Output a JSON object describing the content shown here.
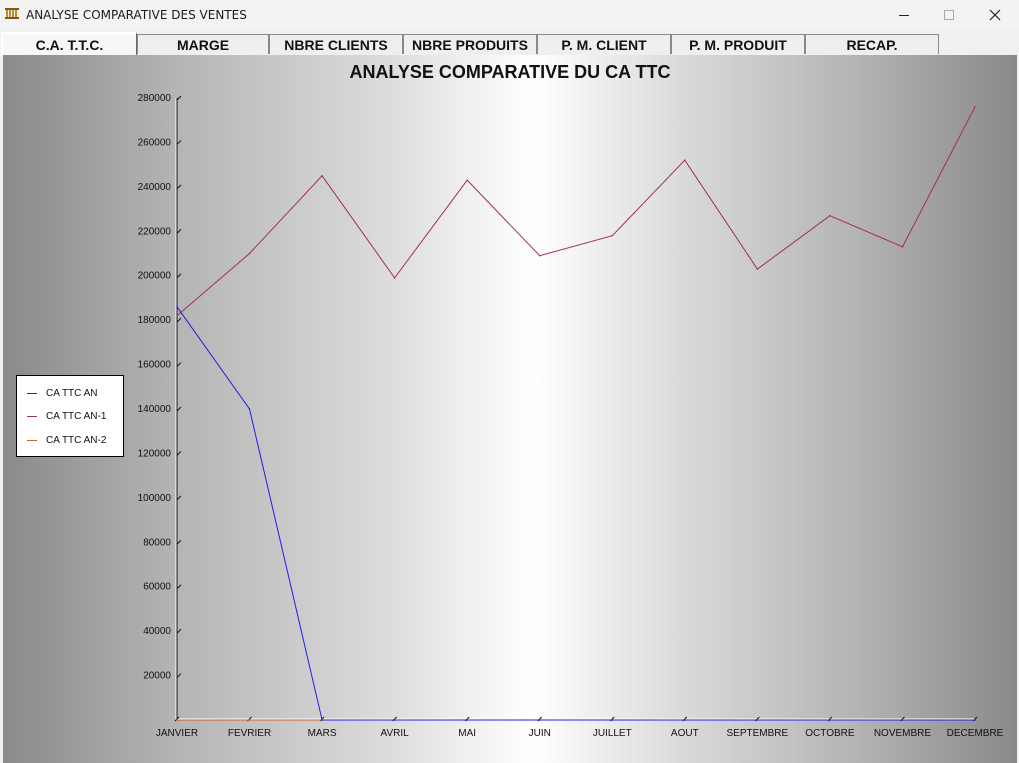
{
  "window": {
    "title": "ANALYSE COMPARATIVE DES VENTES"
  },
  "tabs": [
    {
      "label": "C.A. T.T.C.",
      "active": true
    },
    {
      "label": "MARGE",
      "active": false
    },
    {
      "label": "NBRE CLIENTS",
      "active": false
    },
    {
      "label": "NBRE PRODUITS",
      "active": false
    },
    {
      "label": "P. M. CLIENT",
      "active": false
    },
    {
      "label": "P. M. PRODUIT",
      "active": false
    },
    {
      "label": "RECAP.",
      "active": false
    }
  ],
  "chart_data": {
    "type": "line",
    "title": "ANALYSE COMPARATIVE DU CA TTC",
    "categories": [
      "JANVIER",
      "FEVRIER",
      "MARS",
      "AVRIL",
      "MAI",
      "JUIN",
      "JUILLET",
      "AOUT",
      "SEPTEMBRE",
      "OCTOBRE",
      "NOVEMBRE",
      "DECEMBRE"
    ],
    "ylim": [
      0,
      280000
    ],
    "yticks": [
      20000,
      40000,
      60000,
      80000,
      100000,
      120000,
      140000,
      160000,
      180000,
      200000,
      220000,
      240000,
      260000,
      280000
    ],
    "legend_position": "left",
    "series": [
      {
        "name": "CA TTC AN",
        "color": "#2020e0",
        "values": [
          186000,
          140000,
          0,
          0,
          0,
          0,
          0,
          0,
          0,
          0,
          0,
          0
        ]
      },
      {
        "name": "CA TTC AN-1",
        "color": "#a03050",
        "values": [
          182000,
          210000,
          245000,
          199000,
          243000,
          209000,
          218000,
          252000,
          203000,
          227000,
          213000,
          276000
        ]
      },
      {
        "name": "CA TTC AN-2",
        "color": "#d06020",
        "values": [
          0,
          0,
          0,
          0,
          0,
          0,
          0,
          0,
          0,
          0,
          0,
          0
        ]
      }
    ]
  },
  "icons": {
    "app": "app-icon",
    "minimize": "minimize-icon",
    "maximize": "maximize-icon",
    "close": "close-icon"
  }
}
